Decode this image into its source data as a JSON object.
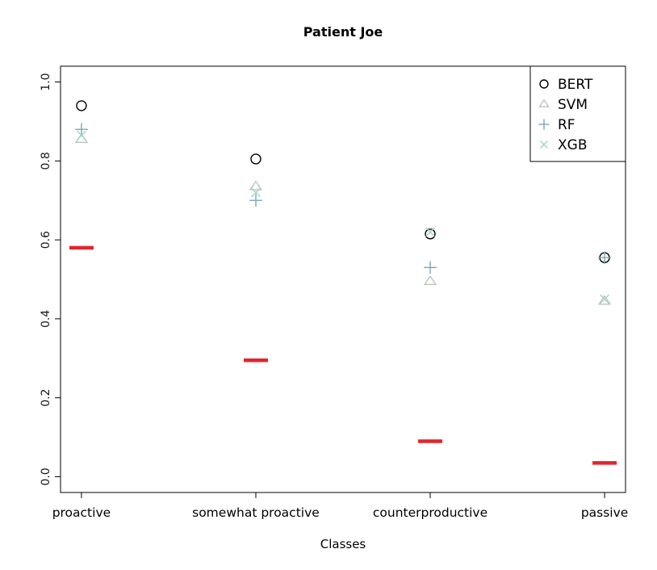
{
  "title": "Patient Joe",
  "xlabel": "Classes",
  "chart_data": {
    "type": "scatter",
    "title": "Patient Joe",
    "xlabel": "Classes",
    "ylabel": "",
    "categories": [
      "proactive",
      "somewhat proactive",
      "counterproductive",
      "passive"
    ],
    "ylim": [
      0.0,
      1.0
    ],
    "yticks": [
      0.0,
      0.2,
      0.4,
      0.6,
      0.8,
      1.0
    ],
    "grid": false,
    "legend_position": "top-right",
    "series": [
      {
        "name": "BERT",
        "marker": "circle",
        "color": "#000000",
        "values": [
          0.94,
          0.805,
          0.615,
          0.555
        ]
      },
      {
        "name": "SVM",
        "marker": "triangle",
        "color": "#b7c9b7",
        "values": [
          0.855,
          0.735,
          0.495,
          0.445
        ]
      },
      {
        "name": "RF",
        "marker": "plus",
        "color": "#76a8b8",
        "values": [
          0.88,
          0.7,
          0.53,
          0.555
        ]
      },
      {
        "name": "XGB",
        "marker": "x",
        "color": "#9fd2cd",
        "values": [
          0.865,
          0.72,
          0.62,
          0.45
        ]
      }
    ],
    "baseline": {
      "name": "baseline",
      "color": "#e3242b",
      "values": [
        0.58,
        0.295,
        0.09,
        0.035
      ]
    }
  }
}
